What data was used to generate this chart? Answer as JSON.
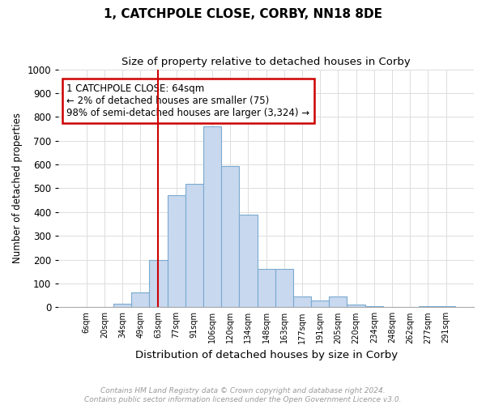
{
  "title": "1, CATCHPOLE CLOSE, CORBY, NN18 8DE",
  "subtitle": "Size of property relative to detached houses in Corby",
  "xlabel": "Distribution of detached houses by size in Corby",
  "ylabel": "Number of detached properties",
  "categories": [
    "6sqm",
    "20sqm",
    "34sqm",
    "49sqm",
    "63sqm",
    "77sqm",
    "91sqm",
    "106sqm",
    "120sqm",
    "134sqm",
    "148sqm",
    "163sqm",
    "177sqm",
    "191sqm",
    "205sqm",
    "220sqm",
    "234sqm",
    "248sqm",
    "262sqm",
    "277sqm",
    "291sqm"
  ],
  "values": [
    0,
    0,
    13,
    63,
    200,
    470,
    520,
    760,
    595,
    390,
    160,
    160,
    45,
    28,
    45,
    10,
    3,
    2,
    2,
    5,
    5
  ],
  "bar_color": "#c8d8ee",
  "bar_edge_color": "#7aaad0",
  "vline_color": "#cc0000",
  "vline_idx": 4,
  "annotation_text": "1 CATCHPOLE CLOSE: 64sqm\n← 2% of detached houses are smaller (75)\n98% of semi-detached houses are larger (3,324) →",
  "annotation_box_color": "white",
  "annotation_box_edge_color": "#cc0000",
  "ylim": [
    0,
    1000
  ],
  "yticks": [
    0,
    100,
    200,
    300,
    400,
    500,
    600,
    700,
    800,
    900,
    1000
  ],
  "footnote": "Contains HM Land Registry data © Crown copyright and database right 2024.\nContains public sector information licensed under the Open Government Licence v3.0.",
  "footnote_color": "#999999",
  "bg_color": "#ffffff",
  "grid_color": "#dddddd"
}
